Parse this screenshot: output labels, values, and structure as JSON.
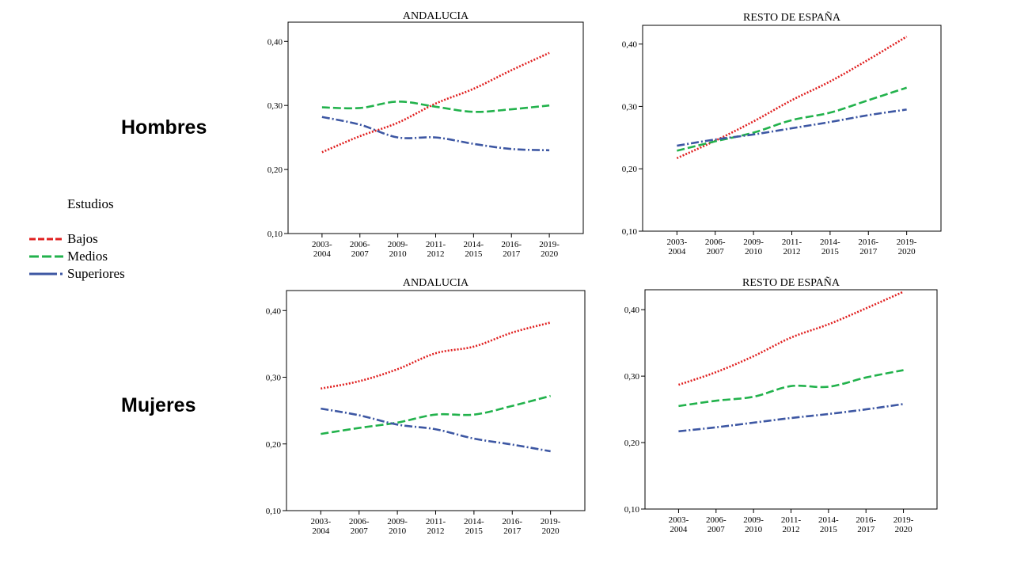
{
  "row_labels": [
    "Hombres",
    "Mujeres"
  ],
  "legend": {
    "title": "Estudios",
    "items": [
      {
        "label": "Bajos",
        "color": "#e02020",
        "dash": "dotted"
      },
      {
        "label": "Medios",
        "color": "#22b24c",
        "dash": "dashed"
      },
      {
        "label": "Superiores",
        "color": "#3d57a3",
        "dash": "dashdot"
      }
    ]
  },
  "chart_data": [
    {
      "type": "line",
      "title": "ANDALUCIA",
      "row": "Hombres",
      "categories": [
        "2003-2004",
        "2006-2007",
        "2009-2010",
        "2011-2012",
        "2014-2015",
        "2016-2017",
        "2019-2020"
      ],
      "ylim": [
        0.1,
        0.43
      ],
      "yticks": [
        "0,10",
        "0,20",
        "0,30",
        "0,40"
      ],
      "series": [
        {
          "name": "Bajos",
          "values": [
            0.227,
            0.252,
            0.273,
            0.303,
            0.326,
            0.355,
            0.382
          ]
        },
        {
          "name": "Medios",
          "values": [
            0.297,
            0.296,
            0.306,
            0.298,
            0.29,
            0.294,
            0.3
          ]
        },
        {
          "name": "Superiores",
          "values": [
            0.282,
            0.27,
            0.25,
            0.25,
            0.24,
            0.232,
            0.23
          ]
        }
      ]
    },
    {
      "type": "line",
      "title": "RESTO DE ESPAÑA",
      "row": "Hombres",
      "categories": [
        "2003-2004",
        "2006-2007",
        "2009-2010",
        "2011-2012",
        "2014-2015",
        "2016-2017",
        "2019-2020"
      ],
      "ylim": [
        0.1,
        0.43
      ],
      "yticks": [
        "0,10",
        "0,20",
        "0,30",
        "0,40"
      ],
      "series": [
        {
          "name": "Bajos",
          "values": [
            0.217,
            0.245,
            0.276,
            0.31,
            0.34,
            0.375,
            0.412
          ]
        },
        {
          "name": "Medios",
          "values": [
            0.229,
            0.244,
            0.258,
            0.278,
            0.29,
            0.31,
            0.33
          ]
        },
        {
          "name": "Superiores",
          "values": [
            0.237,
            0.247,
            0.255,
            0.265,
            0.275,
            0.286,
            0.295
          ]
        }
      ]
    },
    {
      "type": "line",
      "title": "ANDALUCIA",
      "row": "Mujeres",
      "categories": [
        "2003-2004",
        "2006-2007",
        "2009-2010",
        "2011-2012",
        "2014-2015",
        "2016-2017",
        "2019-2020"
      ],
      "ylim": [
        0.1,
        0.43
      ],
      "yticks": [
        "0,10",
        "0,20",
        "0,30",
        "0,40"
      ],
      "series": [
        {
          "name": "Bajos",
          "values": [
            0.283,
            0.294,
            0.312,
            0.336,
            0.346,
            0.367,
            0.382
          ]
        },
        {
          "name": "Medios",
          "values": [
            0.215,
            0.224,
            0.232,
            0.244,
            0.244,
            0.257,
            0.272
          ]
        },
        {
          "name": "Superiores",
          "values": [
            0.253,
            0.243,
            0.229,
            0.222,
            0.208,
            0.199,
            0.189
          ]
        }
      ]
    },
    {
      "type": "line",
      "title": "RESTO DE ESPAÑA",
      "row": "Mujeres",
      "categories": [
        "2003-2004",
        "2006-2007",
        "2009-2010",
        "2011-2012",
        "2014-2015",
        "2016-2017",
        "2019-2020"
      ],
      "ylim": [
        0.1,
        0.43
      ],
      "yticks": [
        "0,10",
        "0,20",
        "0,30",
        "0,40"
      ],
      "series": [
        {
          "name": "Bajos",
          "values": [
            0.287,
            0.306,
            0.33,
            0.358,
            0.378,
            0.402,
            0.427
          ]
        },
        {
          "name": "Medios",
          "values": [
            0.255,
            0.263,
            0.269,
            0.285,
            0.284,
            0.298,
            0.309
          ]
        },
        {
          "name": "Superiores",
          "values": [
            0.217,
            0.223,
            0.23,
            0.237,
            0.243,
            0.25,
            0.258
          ]
        }
      ]
    }
  ]
}
